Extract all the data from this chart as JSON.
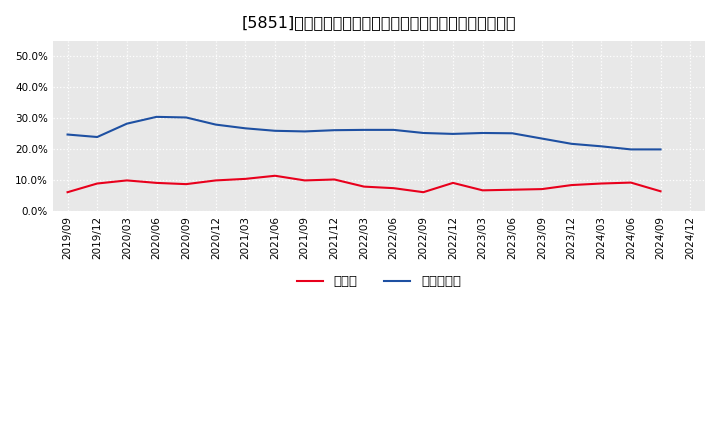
{
  "title": "[5851]　現須金、有利子負債の総資産に対する比率の推移",
  "x_labels": [
    "2019/09",
    "2019/12",
    "2020/03",
    "2020/06",
    "2020/09",
    "2020/12",
    "2021/03",
    "2021/06",
    "2021/09",
    "2021/12",
    "2022/03",
    "2022/06",
    "2022/09",
    "2022/12",
    "2023/03",
    "2023/06",
    "2023/09",
    "2023/12",
    "2024/03",
    "2024/06",
    "2024/09",
    "2024/12"
  ],
  "cash": [
    0.062,
    0.09,
    0.1,
    0.092,
    0.088,
    0.1,
    0.105,
    0.115,
    0.1,
    0.103,
    0.08,
    0.075,
    0.062,
    0.092,
    0.068,
    0.07,
    0.072,
    0.085,
    0.09,
    0.093,
    0.065,
    null
  ],
  "debt": [
    0.248,
    0.24,
    0.283,
    0.305,
    0.303,
    0.28,
    0.268,
    0.26,
    0.258,
    0.262,
    0.263,
    0.263,
    0.253,
    0.25,
    0.253,
    0.252,
    0.235,
    0.218,
    0.21,
    0.2,
    0.2,
    null
  ],
  "cash_color": "#e8001c",
  "debt_color": "#1e50a2",
  "bg_color": "#ffffff",
  "plot_bg_color": "#e8e8e8",
  "grid_color": "#ffffff",
  "ylim": [
    0.0,
    0.55
  ],
  "yticks": [
    0.0,
    0.1,
    0.2,
    0.3,
    0.4,
    0.5
  ],
  "legend_cash": "現須金",
  "legend_debt": "有利子負債",
  "title_fontsize": 11.5,
  "tick_fontsize": 7.5,
  "legend_fontsize": 9.5
}
